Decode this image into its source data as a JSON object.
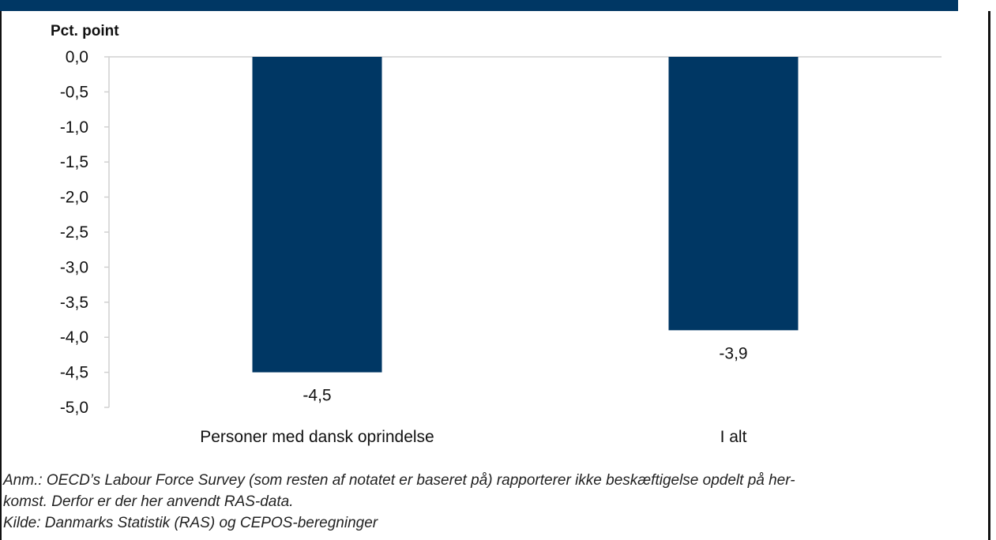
{
  "chart_data": {
    "type": "bar",
    "ylabel": "Pct. point",
    "categories": [
      "Personer med dansk oprindelse",
      "I alt"
    ],
    "values": [
      -4.5,
      -3.9
    ],
    "data_labels": [
      "-4,5",
      "-3,9"
    ],
    "ylim": [
      -5.0,
      0.0
    ],
    "yticks": [
      0.0,
      -0.5,
      -1.0,
      -1.5,
      -2.0,
      -2.5,
      -3.0,
      -3.5,
      -4.0,
      -4.5,
      -5.0
    ],
    "ytick_labels": [
      "0,0",
      "-0,5",
      "-1,0",
      "-1,5",
      "-2,0",
      "-2,5",
      "-3,0",
      "-3,5",
      "-4,0",
      "-4,5",
      "-5,0"
    ],
    "bar_color": "#003764",
    "grid": false
  },
  "notes": {
    "line1": "Anm.: OECD’s Labour Force Survey (som resten af notatet er baseret på) rapporterer ikke beskæftigelse opdelt på her-",
    "line2": "komst. Derfor er der her anvendt RAS-data.",
    "line3": "Kilde: Danmarks Statistik (RAS) og CEPOS-beregninger"
  }
}
